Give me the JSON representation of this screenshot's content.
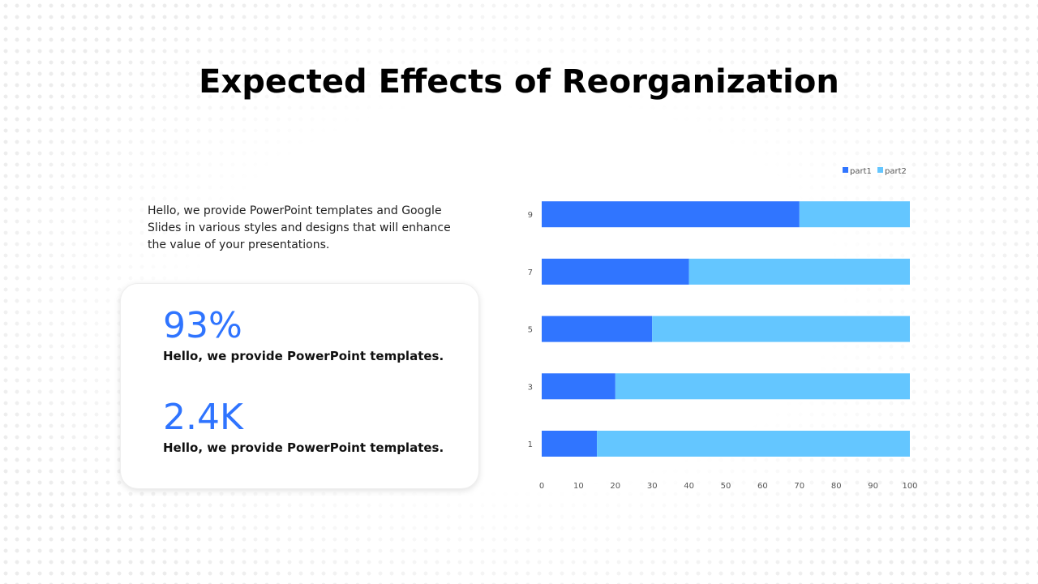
{
  "title": "Expected Effects of Reorganization",
  "intro": "Hello, we provide PowerPoint templates and Google Slides in various styles and designs that will enhance the value of your presentations.",
  "stats": [
    {
      "value": "93%",
      "description": "Hello, we provide PowerPoint templates."
    },
    {
      "value": "2.4K",
      "description": "Hello, we provide PowerPoint templates."
    }
  ],
  "colors": {
    "accent": "#2f74ff",
    "part1": "#3075ff",
    "part2": "#64c6ff"
  },
  "chart_data": {
    "type": "bar",
    "orientation": "horizontal",
    "stacked": true,
    "categories": [
      "1",
      "3",
      "5",
      "7",
      "9"
    ],
    "series": [
      {
        "name": "part1",
        "values": [
          15,
          20,
          30,
          40,
          70
        ]
      },
      {
        "name": "part2",
        "values": [
          85,
          80,
          70,
          60,
          30
        ]
      }
    ],
    "xlim": [
      0,
      100
    ],
    "xticks": [
      0,
      10,
      20,
      30,
      40,
      50,
      60,
      70,
      80,
      90,
      100
    ],
    "legend": "top-right",
    "grid": false
  }
}
